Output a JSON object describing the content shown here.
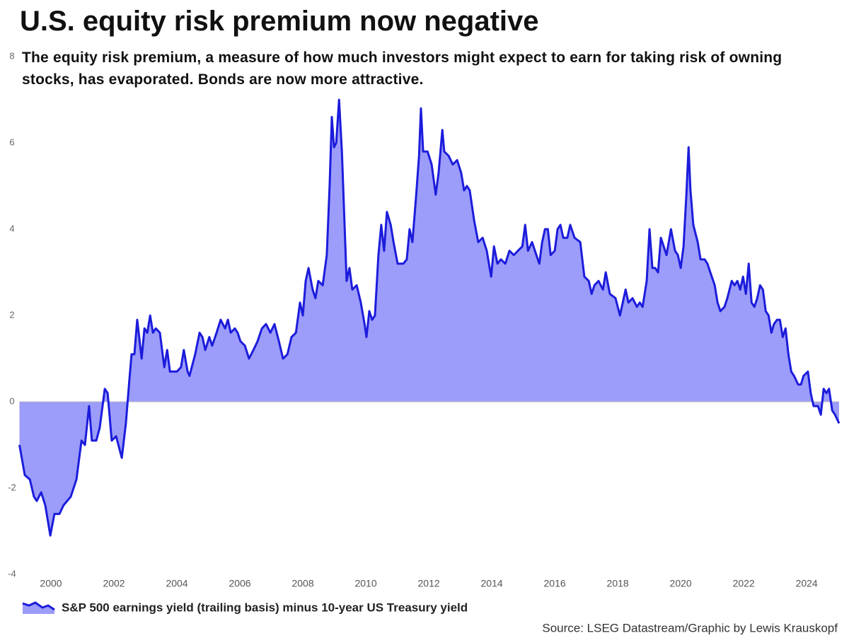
{
  "chart_data": {
    "type": "area",
    "title": "U.S. equity risk premium now negative",
    "subtitle": "The equity risk premium, a measure of how much investors might expect to earn for taking risk of owning stocks, has evaporated. Bonds are now more attractive.",
    "source": "Source: LSEG Datastream/Graphic by Lewis Krauskopf",
    "xlim": [
      1999,
      2025.03
    ],
    "ylim": [
      -4,
      8
    ],
    "xticks": [
      2000,
      2002,
      2004,
      2006,
      2008,
      2010,
      2012,
      2014,
      2016,
      2018,
      2020,
      2022,
      2024
    ],
    "yticks": [
      -4,
      -2,
      0,
      2,
      4,
      6,
      8
    ],
    "x": [
      1999.0,
      1999.17,
      1999.33,
      1999.46,
      1999.55,
      1999.69,
      1999.82,
      1999.98,
      2000.11,
      2000.27,
      2000.4,
      2000.63,
      2000.81,
      2000.97,
      2001.08,
      2001.21,
      2001.3,
      2001.44,
      2001.55,
      2001.71,
      2001.8,
      2001.93,
      2002.07,
      2002.25,
      2002.38,
      2002.49,
      2002.56,
      2002.65,
      2002.74,
      2002.88,
      2002.97,
      2003.06,
      2003.15,
      2003.24,
      2003.33,
      2003.46,
      2003.6,
      2003.69,
      2003.78,
      2004.0,
      2004.13,
      2004.22,
      2004.34,
      2004.4,
      2004.58,
      2004.72,
      2004.81,
      2004.9,
      2005.03,
      2005.12,
      2005.26,
      2005.39,
      2005.53,
      2005.62,
      2005.71,
      2005.84,
      2005.93,
      2006.02,
      2006.16,
      2006.29,
      2006.43,
      2006.56,
      2006.7,
      2006.83,
      2006.97,
      2007.1,
      2007.24,
      2007.37,
      2007.51,
      2007.64,
      2007.78,
      2007.91,
      2008.0,
      2008.09,
      2008.18,
      2008.31,
      2008.4,
      2008.49,
      2008.63,
      2008.76,
      2008.85,
      2008.92,
      2008.99,
      2009.06,
      2009.15,
      2009.24,
      2009.33,
      2009.39,
      2009.48,
      2009.57,
      2009.71,
      2009.84,
      2009.96,
      2010.02,
      2010.11,
      2010.2,
      2010.29,
      2010.4,
      2010.49,
      2010.58,
      2010.67,
      2010.79,
      2010.88,
      2011.01,
      2011.1,
      2011.19,
      2011.3,
      2011.39,
      2011.48,
      2011.6,
      2011.69,
      2011.75,
      2011.82,
      2011.96,
      2012.09,
      2012.22,
      2012.31,
      2012.43,
      2012.49,
      2012.63,
      2012.76,
      2012.9,
      2013.03,
      2013.12,
      2013.21,
      2013.3,
      2013.44,
      2013.57,
      2013.71,
      2013.84,
      2013.98,
      2014.07,
      2014.18,
      2014.29,
      2014.43,
      2014.56,
      2014.7,
      2014.83,
      2014.97,
      2015.06,
      2015.15,
      2015.28,
      2015.37,
      2015.51,
      2015.6,
      2015.69,
      2015.78,
      2015.87,
      2016.0,
      2016.09,
      2016.18,
      2016.27,
      2016.4,
      2016.49,
      2016.63,
      2016.81,
      2016.94,
      2017.08,
      2017.17,
      2017.26,
      2017.39,
      2017.53,
      2017.62,
      2017.75,
      2017.93,
      2018.07,
      2018.16,
      2018.25,
      2018.34,
      2018.47,
      2018.61,
      2018.7,
      2018.79,
      2018.92,
      2019.01,
      2019.1,
      2019.19,
      2019.28,
      2019.37,
      2019.46,
      2019.55,
      2019.69,
      2019.82,
      2019.91,
      2020.0,
      2020.09,
      2020.18,
      2020.25,
      2020.31,
      2020.4,
      2020.54,
      2020.63,
      2020.76,
      2020.85,
      2020.94,
      2021.08,
      2021.17,
      2021.26,
      2021.39,
      2021.48,
      2021.62,
      2021.71,
      2021.8,
      2021.89,
      2021.98,
      2022.07,
      2022.16,
      2022.25,
      2022.34,
      2022.43,
      2022.52,
      2022.61,
      2022.7,
      2022.79,
      2022.88,
      2022.96,
      2023.06,
      2023.15,
      2023.24,
      2023.33,
      2023.42,
      2023.51,
      2023.6,
      2023.73,
      2023.82,
      2023.9,
      2024.04,
      2024.13,
      2024.22,
      2024.36,
      2024.45,
      2024.54,
      2024.63,
      2024.71,
      2024.81,
      2024.9,
      2025.03
    ],
    "series": [
      {
        "name": "S&P 500 earnings yield (trailing basis) minus 10-year US Treasury yield",
        "color": "#1c1cdc",
        "fill": "#9c9cfa",
        "values": [
          -1.0,
          -1.7,
          -1.8,
          -2.2,
          -2.3,
          -2.1,
          -2.4,
          -3.1,
          -2.6,
          -2.6,
          -2.4,
          -2.2,
          -1.8,
          -0.9,
          -1.0,
          -0.1,
          -0.9,
          -0.9,
          -0.6,
          0.3,
          0.2,
          -0.9,
          -0.8,
          -1.3,
          -0.5,
          0.5,
          1.1,
          1.1,
          1.9,
          1.0,
          1.7,
          1.6,
          2.0,
          1.6,
          1.7,
          1.6,
          0.8,
          1.2,
          0.7,
          0.7,
          0.8,
          1.2,
          0.7,
          0.6,
          1.1,
          1.6,
          1.5,
          1.2,
          1.5,
          1.3,
          1.6,
          1.9,
          1.7,
          1.9,
          1.6,
          1.7,
          1.6,
          1.4,
          1.3,
          1.0,
          1.2,
          1.4,
          1.7,
          1.8,
          1.6,
          1.8,
          1.4,
          1.0,
          1.1,
          1.5,
          1.6,
          2.3,
          2.0,
          2.8,
          3.1,
          2.6,
          2.4,
          2.8,
          2.7,
          3.4,
          5.0,
          6.6,
          5.9,
          6.0,
          7.0,
          5.8,
          4.0,
          2.8,
          3.1,
          2.6,
          2.7,
          2.3,
          1.8,
          1.5,
          2.1,
          1.9,
          2.0,
          3.4,
          4.1,
          3.5,
          4.4,
          4.1,
          3.7,
          3.2,
          3.2,
          3.2,
          3.3,
          4.0,
          3.7,
          4.8,
          5.7,
          6.8,
          5.8,
          5.8,
          5.5,
          4.8,
          5.3,
          6.3,
          5.8,
          5.7,
          5.5,
          5.6,
          5.3,
          4.9,
          5.0,
          4.9,
          4.2,
          3.7,
          3.8,
          3.5,
          2.9,
          3.6,
          3.2,
          3.3,
          3.2,
          3.5,
          3.4,
          3.5,
          3.6,
          4.1,
          3.5,
          3.7,
          3.5,
          3.2,
          3.7,
          4.0,
          4.0,
          3.4,
          3.5,
          4.0,
          4.1,
          3.8,
          3.8,
          4.1,
          3.8,
          3.7,
          2.9,
          2.8,
          2.5,
          2.7,
          2.8,
          2.6,
          3.0,
          2.5,
          2.4,
          2.0,
          2.3,
          2.6,
          2.3,
          2.4,
          2.2,
          2.3,
          2.2,
          2.8,
          4.0,
          3.1,
          3.1,
          3.0,
          3.8,
          3.6,
          3.4,
          4.0,
          3.5,
          3.4,
          3.1,
          3.6,
          4.8,
          5.9,
          4.9,
          4.1,
          3.7,
          3.3,
          3.3,
          3.2,
          3.0,
          2.7,
          2.3,
          2.1,
          2.2,
          2.4,
          2.8,
          2.7,
          2.8,
          2.6,
          2.9,
          2.5,
          3.2,
          2.3,
          2.2,
          2.4,
          2.7,
          2.6,
          2.1,
          2.0,
          1.6,
          1.8,
          1.9,
          1.9,
          1.5,
          1.7,
          1.1,
          0.7,
          0.6,
          0.4,
          0.4,
          0.6,
          0.7,
          0.2,
          -0.1,
          -0.1,
          -0.3,
          0.3,
          0.2,
          0.3,
          -0.2,
          -0.3,
          -0.5
        ]
      }
    ]
  }
}
